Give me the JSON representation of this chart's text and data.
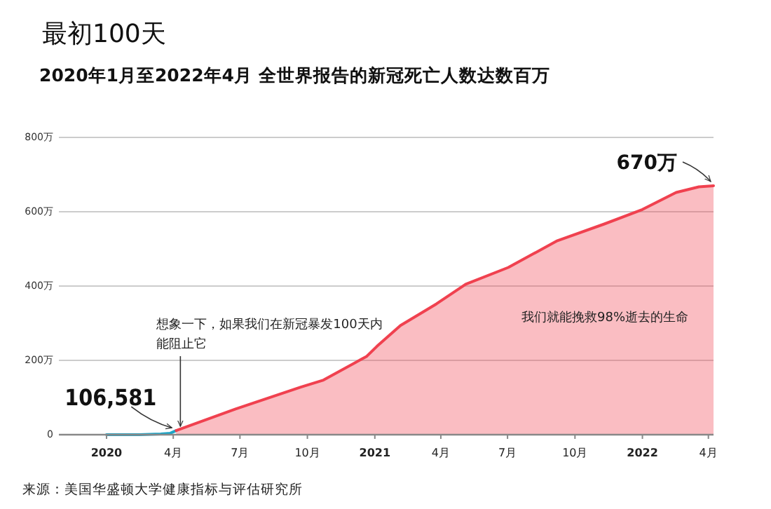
{
  "chart_data": {
    "type": "area",
    "title": "最初100天",
    "subtitle": "2020年1月至2022年4月 全世界报告的新冠死亡人数达数百万",
    "series": [
      {
        "type": "line",
        "color": "#1ea5c6",
        "x": [
          "2020-01-01",
          "2020-02-15",
          "2020-03-15",
          "2020-03-28",
          "2020-04-05"
        ],
        "values": [
          0,
          0,
          2,
          4,
          11
        ]
      },
      {
        "color": "#f0414f",
        "x": [
          "2020-04-05",
          "2020-06-25",
          "2020-09-22",
          "2020-10-23",
          "2020-12-21",
          "2021-01-04",
          "2021-02-05",
          "2021-03-26",
          "2021-05-05",
          "2021-07-02",
          "2021-09-07",
          "2021-11-10",
          "2022-01-01",
          "2022-02-16",
          "2022-03-19",
          "2022-04-08"
        ],
        "values": [
          11,
          69,
          128,
          147,
          211,
          238,
          294,
          352,
          405,
          450,
          522,
          567,
          606,
          652,
          667,
          670
        ]
      }
    ],
    "xlim": [
      "2019-10-28",
      "2022-04-08"
    ],
    "xticks": [
      {
        "value": "2020",
        "label": "2020"
      },
      {
        "value": "2020-04",
        "label": "4月"
      },
      {
        "value": "2020-07",
        "label": "7月"
      },
      {
        "value": "2020-10",
        "label": "10月"
      },
      {
        "value": "2021",
        "label": "2021"
      },
      {
        "value": "2021-04",
        "label": "4月"
      },
      {
        "value": "2021-07",
        "label": "7月"
      },
      {
        "value": "2021-10",
        "label": "10月"
      },
      {
        "value": "2022",
        "label": "2022"
      },
      {
        "value": "2022-04",
        "label": "4月"
      }
    ],
    "ylim": [
      0,
      800
    ],
    "yticks": [
      0,
      {
        "value": 200,
        "label": "200万"
      },
      {
        "value": 400,
        "label": "400万"
      },
      {
        "value": 600,
        "label": "600万"
      },
      {
        "value": 800,
        "label": "800万"
      }
    ],
    "grid": "y",
    "annotations": [
      {
        "text": "106,581",
        "x": "2020-04-05",
        "y": 11
      },
      {
        "text": "670万",
        "x": "2022-04-08",
        "y": 670
      },
      {
        "text": "想象一下，如果我们在新冠暴发100天内能阻止它",
        "x": "2020-04-05",
        "y": 11
      },
      "我们就能挽救98%逝去的生命",
      "来源：美国华盛顿大学健康指标与评估研究所"
    ]
  }
}
